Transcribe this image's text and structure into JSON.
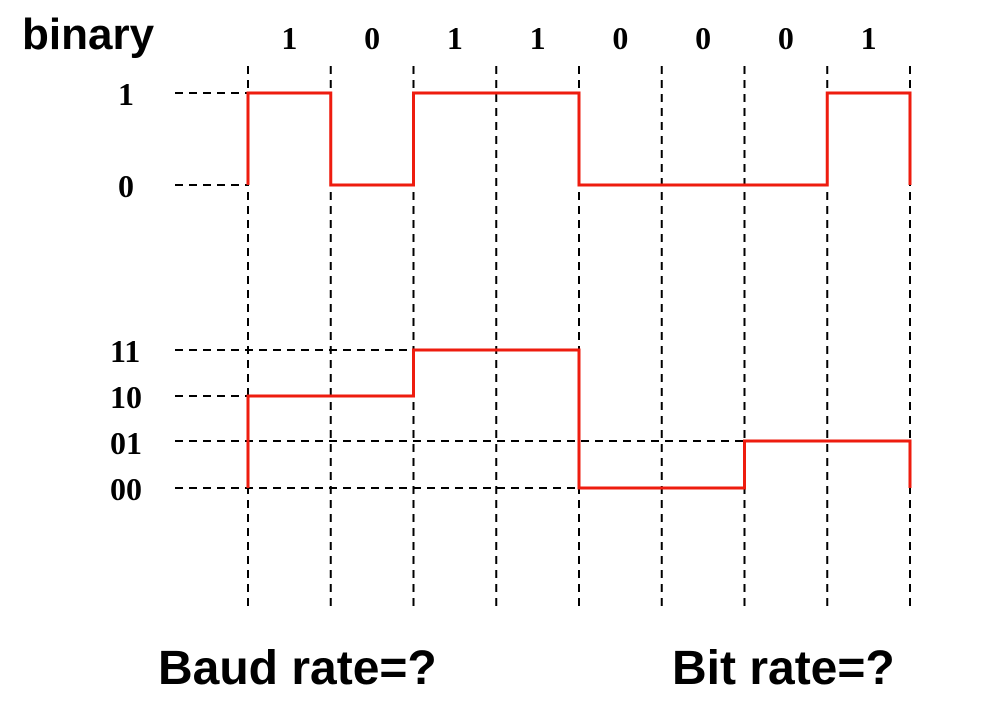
{
  "title": "binary",
  "bits": [
    "1",
    "0",
    "1",
    "1",
    "0",
    "0",
    "0",
    "1"
  ],
  "binary_signal": {
    "levels": [
      "1",
      "0"
    ],
    "values": [
      1,
      0,
      1,
      1,
      0,
      0,
      0,
      1
    ]
  },
  "quaternary_signal": {
    "levels": [
      "11",
      "10",
      "01",
      "00"
    ],
    "values": [
      "10",
      "11",
      "00",
      "01"
    ]
  },
  "questions": {
    "baud_rate": "Baud rate=?",
    "bit_rate": "Bit rate=?"
  },
  "colors": {
    "signal": "#ee1c0f",
    "grid": "#000000",
    "text": "#000000"
  }
}
